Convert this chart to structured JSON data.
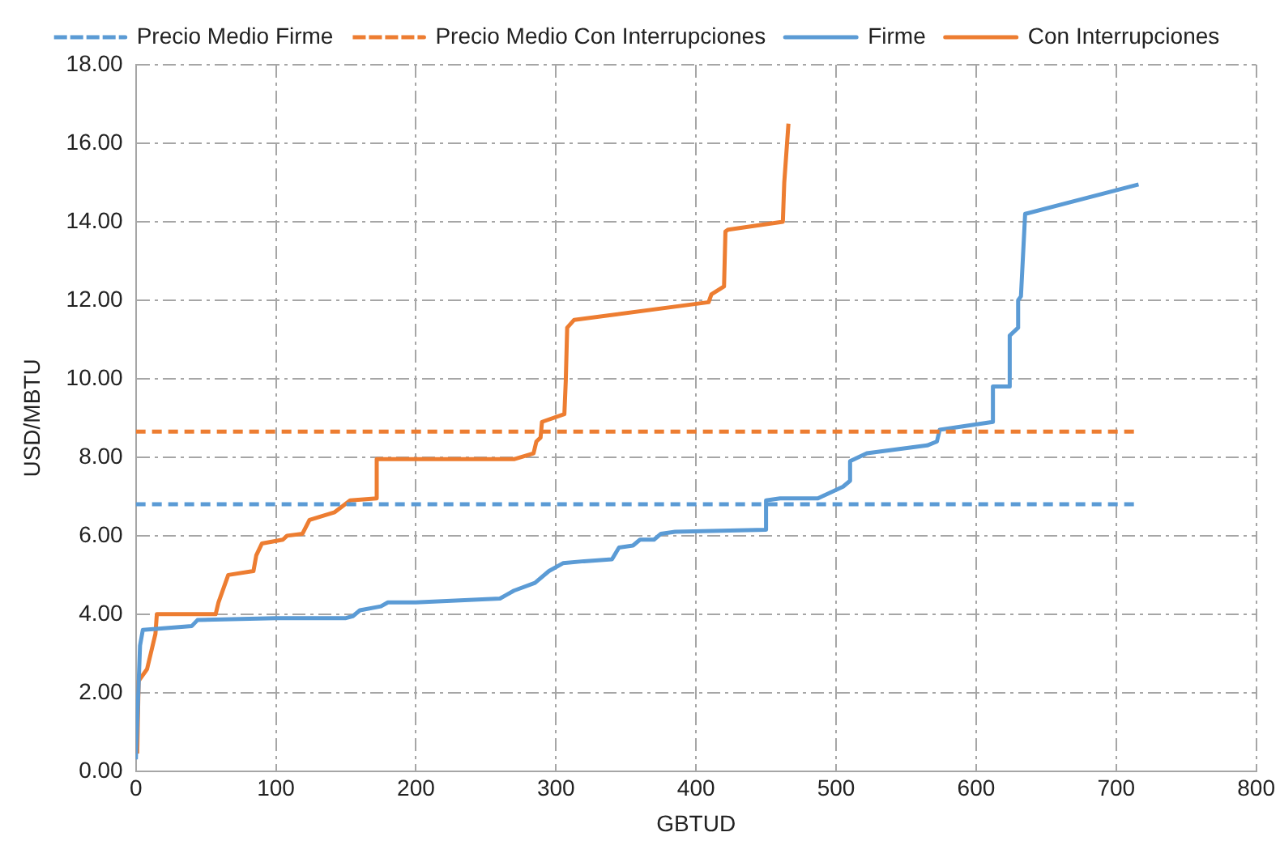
{
  "chart_data": {
    "type": "line",
    "xlabel": "GBTUD",
    "ylabel": "USD/MBTU",
    "xlim": [
      0,
      800
    ],
    "xticks": [
      0,
      100,
      200,
      300,
      400,
      500,
      600,
      700,
      800
    ],
    "ylim": [
      0,
      18
    ],
    "yticks": [
      {
        "value": 0,
        "label": "0.00"
      },
      {
        "value": 2,
        "label": "2.00"
      },
      {
        "value": 4,
        "label": "4.00"
      },
      {
        "value": 6,
        "label": "6.00"
      },
      {
        "value": 8,
        "label": "8.00"
      },
      {
        "value": 10,
        "label": "10.00"
      },
      {
        "value": 12,
        "label": "12.00"
      },
      {
        "value": 14,
        "label": "14.00"
      },
      {
        "value": 16,
        "label": "16.00"
      },
      {
        "value": 18,
        "label": "18.00"
      }
    ],
    "grid": true,
    "legend": "top",
    "marker": "none",
    "series": [
      {
        "name": "Precio Medio Firme",
        "color": "#5b9bd5",
        "line_style": "dashed",
        "x": [
          0,
          715
        ],
        "values": [
          6.8,
          6.8
        ]
      },
      {
        "name": "Precio Medio Con Interrupciones",
        "color": "#ed7d31",
        "line_style": "dashed",
        "x": [
          0,
          715
        ],
        "values": [
          8.65,
          8.65
        ]
      },
      {
        "name": "Firme",
        "color": "#5b9bd5",
        "line_style": "solid",
        "x": [
          0,
          3,
          5,
          40,
          44,
          100,
          150,
          155,
          160,
          175,
          180,
          200,
          260,
          265,
          270,
          285,
          295,
          305,
          320,
          340,
          345,
          355,
          360,
          370,
          375,
          385,
          450,
          450,
          460,
          487,
          505,
          510,
          510,
          522,
          565,
          572,
          574,
          612,
          612,
          624,
          624,
          630,
          630,
          632,
          635,
          716
        ],
        "values": [
          0.3,
          3.2,
          3.6,
          3.7,
          3.85,
          3.9,
          3.9,
          3.95,
          4.1,
          4.2,
          4.3,
          4.3,
          4.4,
          4.5,
          4.6,
          4.8,
          5.1,
          5.3,
          5.35,
          5.4,
          5.7,
          5.75,
          5.9,
          5.9,
          6.05,
          6.1,
          6.15,
          6.9,
          6.95,
          6.95,
          7.25,
          7.4,
          7.9,
          8.1,
          8.3,
          8.4,
          8.7,
          8.9,
          9.8,
          9.8,
          11.1,
          11.3,
          12.0,
          12.1,
          14.2,
          14.95
        ]
      },
      {
        "name": "Con Interrupciones",
        "color": "#ed7d31",
        "line_style": "solid",
        "x": [
          1,
          2,
          8,
          14,
          15,
          57,
          59,
          63,
          66,
          84,
          86,
          90,
          105,
          108,
          119,
          124,
          142,
          153,
          172,
          172,
          270,
          284,
          286,
          289,
          290,
          306,
          307,
          308,
          313,
          409,
          411,
          420,
          421,
          423,
          462,
          463,
          466
        ],
        "values": [
          0.45,
          2.3,
          2.6,
          3.5,
          4.0,
          4.0,
          4.3,
          4.7,
          5.0,
          5.1,
          5.5,
          5.8,
          5.9,
          6.0,
          6.05,
          6.4,
          6.6,
          6.9,
          6.95,
          7.95,
          7.95,
          8.1,
          8.4,
          8.5,
          8.9,
          9.1,
          9.95,
          11.3,
          11.5,
          11.95,
          12.15,
          12.35,
          13.75,
          13.8,
          14.0,
          15.0,
          16.5
        ]
      }
    ]
  }
}
